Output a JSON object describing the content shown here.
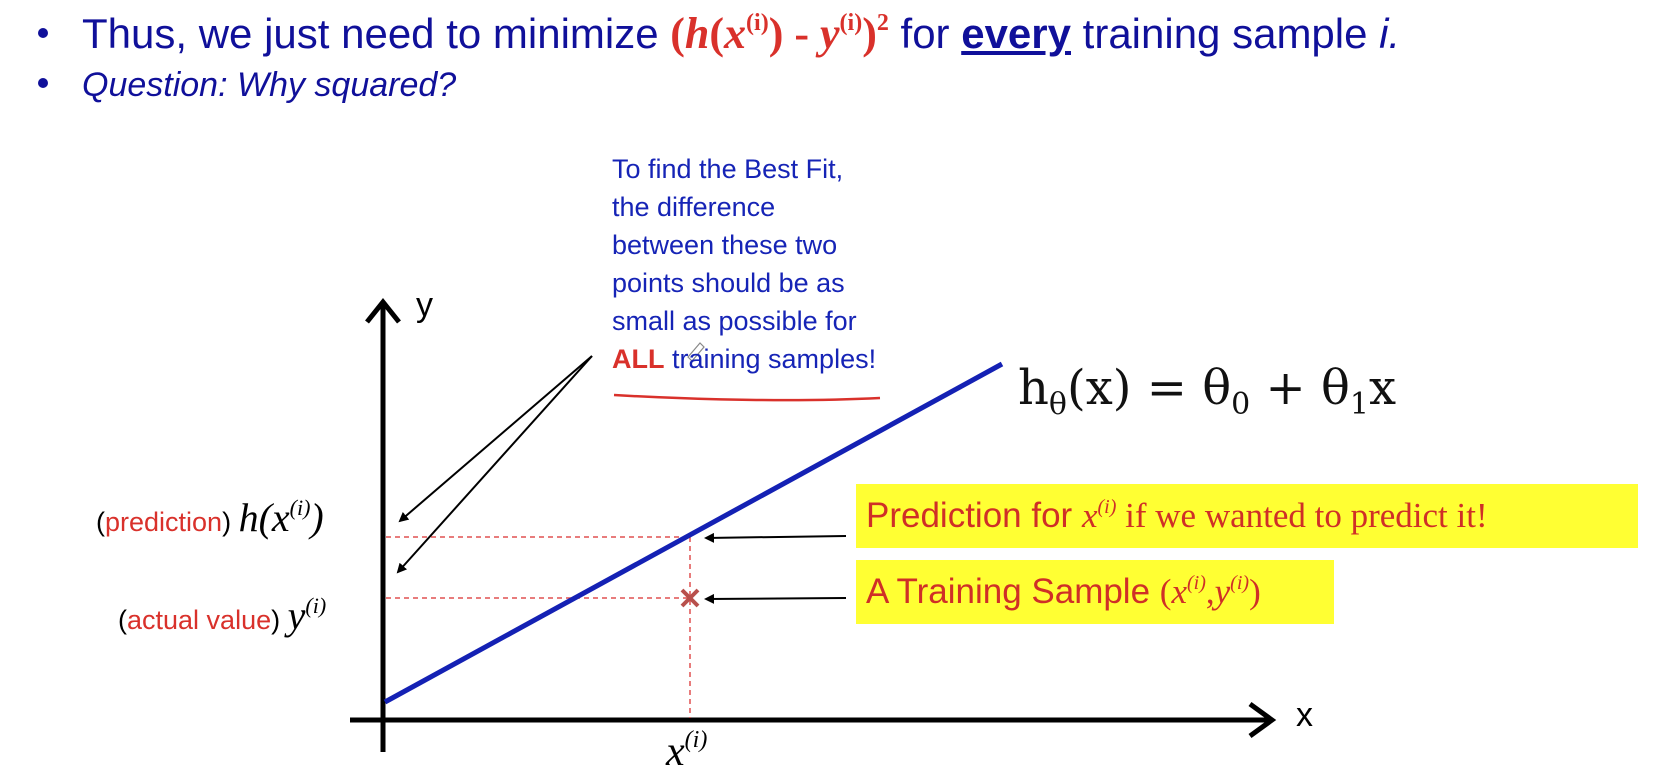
{
  "bullets": {
    "line1": {
      "lead": "Thus, we just need to minimize",
      "formula_h": "h",
      "formula_x": "x",
      "formula_sup": "(i)",
      "formula_minus": "- ",
      "formula_y": "y",
      "formula_sq": "2",
      "for_word": " for ",
      "every_word": "every",
      "tail": " training sample ",
      "i_word": "i."
    },
    "line2": "Question: Why squared?"
  },
  "annotation": {
    "lines": [
      "To find the Best Fit,",
      "the difference",
      "between these two",
      "points should be as",
      "small as possible for"
    ],
    "all_word": "ALL",
    "last_line_rest": " training samples!"
  },
  "left_labels": {
    "prediction_word": "prediction",
    "prediction_math": "h(x",
    "actual_word": "actual value",
    "actual_math": "y",
    "sup": "(i)"
  },
  "boxes": {
    "prediction_text": "Prediction for ",
    "prediction_tail": " if we wanted to predict it!",
    "sample_text": "A Training Sample ",
    "x_var": "x",
    "y_var": "y",
    "sup": "(i)"
  },
  "formula": {
    "h": "h",
    "theta_sub": "θ",
    "rest": "(x) = θ",
    "sub0": "0",
    "plus": " + θ",
    "sub1": "1",
    "x": "x"
  },
  "axes": {
    "y_label": "y",
    "x_label": "x",
    "xi_base": "x",
    "xi_sup": "(i)"
  },
  "colors": {
    "title_blue": "#10109a",
    "annotation_blue": "#1624b6",
    "accent_red": "#d9312b",
    "line_blue": "#1421b4",
    "highlight_yellow": "#ffff33",
    "marker": "#b8504c"
  }
}
